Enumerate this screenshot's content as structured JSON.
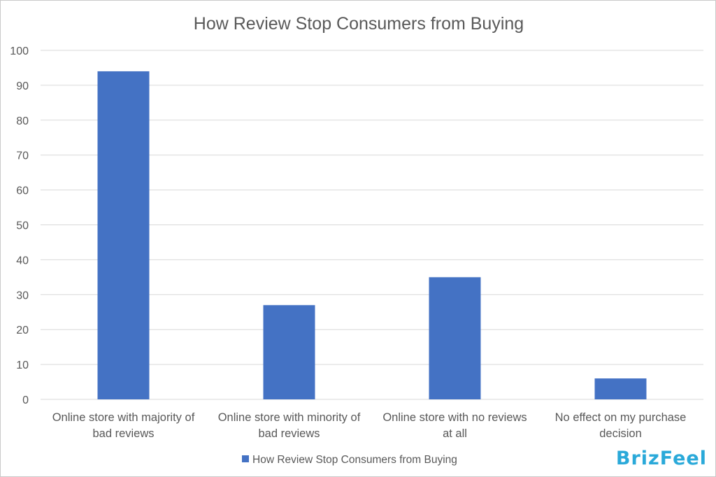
{
  "brand": "BrizFeel",
  "chart_data": {
    "type": "bar",
    "title": "How Review Stop Consumers from Buying",
    "xlabel": "",
    "ylabel": "",
    "ylim": [
      0,
      100
    ],
    "yticks": [
      0,
      10,
      20,
      30,
      40,
      50,
      60,
      70,
      80,
      90,
      100
    ],
    "grid": true,
    "legend_position": "bottom",
    "categories": [
      "Online store with majority of bad reviews",
      "Online store with minority of bad reviews",
      "Online store with no reviews at all",
      "No effect on my purchase decision"
    ],
    "category_lines": [
      [
        "Online store with majority of",
        "bad reviews"
      ],
      [
        "Online store with minority of",
        "bad reviews"
      ],
      [
        "Online store with no reviews",
        "at all"
      ],
      [
        "No effect on my purchase",
        "decision"
      ]
    ],
    "series": [
      {
        "name": "How Review Stop Consumers from Buying",
        "values": [
          94,
          27,
          35,
          6
        ],
        "color": "#4472c4"
      }
    ]
  }
}
